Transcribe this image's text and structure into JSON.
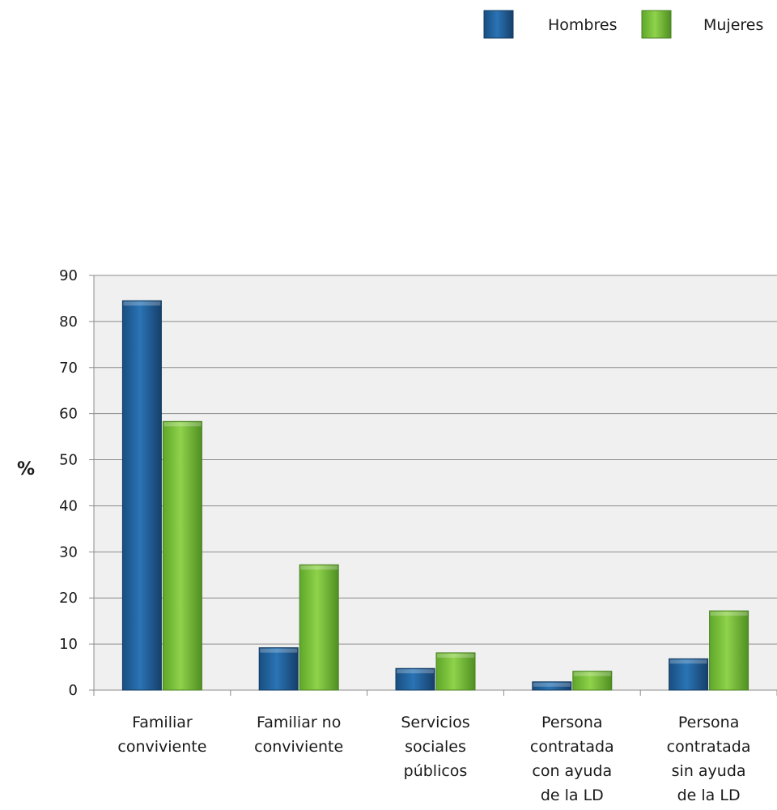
{
  "chart_data": {
    "type": "bar",
    "title": "",
    "xlabel": "",
    "ylabel": "%",
    "ylim": [
      0,
      90
    ],
    "yticks": [
      0,
      10,
      20,
      30,
      40,
      50,
      60,
      70,
      80,
      90
    ],
    "grid": true,
    "legend_position": "top-right",
    "categories": [
      [
        "Familiar",
        "conviviente"
      ],
      [
        "Familiar no",
        "conviviente"
      ],
      [
        "Servicios",
        "sociales",
        "públicos"
      ],
      [
        "Persona",
        "contratada",
        "con ayuda",
        "de la LD"
      ],
      [
        "Persona",
        "contratada",
        "sin ayuda",
        "de la LD"
      ]
    ],
    "series": [
      {
        "name": "Hombres",
        "color": "#1f5f99",
        "values": [
          84.5,
          9.2,
          4.7,
          1.8,
          6.8
        ]
      },
      {
        "name": "Mujeres",
        "color": "#7dc43a",
        "values": [
          58.3,
          27.2,
          8.1,
          4.1,
          17.2
        ]
      }
    ]
  }
}
